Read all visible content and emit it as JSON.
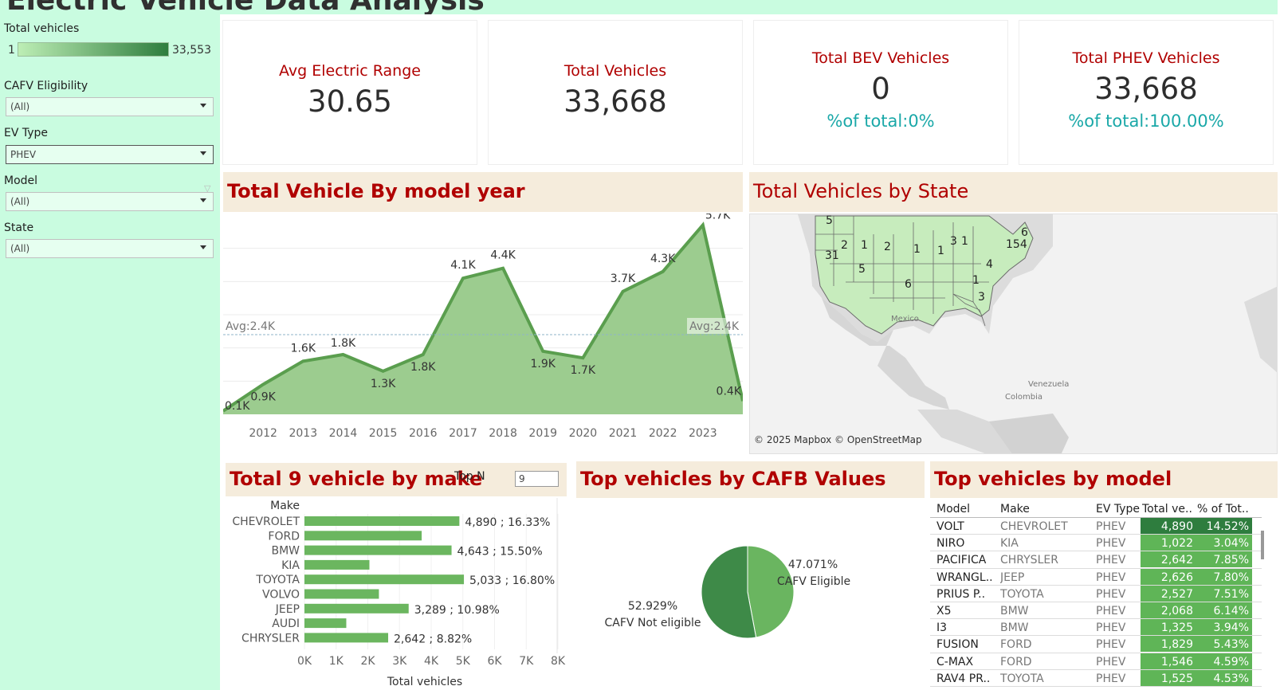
{
  "title": "Electric Vehicle Data Analysis",
  "sidebar": {
    "legend": {
      "label": "Total vehicles",
      "min": "1",
      "max": "33,553"
    },
    "filters": [
      {
        "label": "CAFV Eligibility",
        "value": "(All)"
      },
      {
        "label": "EV Type",
        "value": "PHEV"
      },
      {
        "label": "Model",
        "value": "(All)"
      },
      {
        "label": "State",
        "value": "(All)"
      }
    ]
  },
  "kpis": [
    {
      "title": "Avg Electric Range",
      "value": "30.65"
    },
    {
      "title": "Total Vehicles",
      "value": "33,668"
    },
    {
      "title": "Total BEV Vehicles",
      "value": "0",
      "pct": "%of total:0%"
    },
    {
      "title": "Total PHEV Vehicles",
      "value": "33,668",
      "pct": "%of total:100.00%"
    }
  ],
  "sections": {
    "model_year": "Total Vehicle By model year",
    "state": "Total Vehicles by State",
    "make": "Total 9 vehicle by make",
    "cafb": "Top vehicles by  CAFB Values",
    "model": "Top vehicles by model"
  },
  "topn": {
    "label": "Top N",
    "value": "9"
  },
  "chart_data": [
    {
      "type": "area",
      "title": "Total Vehicle By model year",
      "x_ticks": [
        "2012",
        "2013",
        "2014",
        "2015",
        "2016",
        "2017",
        "2018",
        "2019",
        "2020",
        "2021",
        "2022",
        "2023"
      ],
      "points": [
        {
          "x": 2011,
          "y": 0.1,
          "label": "0.1K"
        },
        {
          "x": 2012,
          "y": 0.9,
          "label": "0.9K"
        },
        {
          "x": 2013,
          "y": 1.6,
          "label": "1.6K"
        },
        {
          "x": 2014,
          "y": 1.8,
          "label": "1.8K"
        },
        {
          "x": 2015,
          "y": 1.3,
          "label": "1.3K"
        },
        {
          "x": 2016,
          "y": 1.8,
          "label": "1.8K"
        },
        {
          "x": 2017,
          "y": 4.1,
          "label": "4.1K"
        },
        {
          "x": 2018,
          "y": 4.4,
          "label": "4.4K"
        },
        {
          "x": 2019,
          "y": 1.9,
          "label": "1.9K"
        },
        {
          "x": 2020,
          "y": 1.7,
          "label": "1.7K"
        },
        {
          "x": 2021,
          "y": 3.7,
          "label": "3.7K"
        },
        {
          "x": 2022,
          "y": 4.3,
          "label": "4.3K"
        },
        {
          "x": 2023,
          "y": 5.7,
          "label": "5.7K"
        },
        {
          "x": 2024,
          "y": 0.4,
          "label": "0.4K"
        }
      ],
      "avg": {
        "value": 2.4,
        "label": "Avg:2.4K"
      },
      "ylim": [
        0,
        6
      ],
      "grid": true,
      "color": "#5a9e4e"
    },
    {
      "type": "bar",
      "title": "Total 9 vehicle by make",
      "orientation": "horizontal",
      "axis_header": "Make",
      "xlabel": "Total vehicles",
      "categories": [
        "CHEVROLET",
        "FORD",
        "BMW",
        "KIA",
        "TOYOTA",
        "VOLVO",
        "JEEP",
        "AUDI",
        "CHRYSLER"
      ],
      "values": [
        4890,
        3700,
        4643,
        2050,
        5033,
        2350,
        3289,
        1320,
        2642
      ],
      "labels": [
        "4,890 ; 16.33%",
        "",
        "4,643 ; 15.50%",
        "",
        "5,033 ; 16.80%",
        "",
        "3,289 ; 10.98%",
        "",
        "2,642 ; 8.82%"
      ],
      "x_ticks": [
        "0K",
        "1K",
        "2K",
        "3K",
        "4K",
        "5K",
        "6K",
        "7K",
        "8K"
      ],
      "xlim": [
        0,
        8000
      ],
      "color": "#6bb65f"
    },
    {
      "type": "pie",
      "title": "Top vehicles by  CAFB Values",
      "slices": [
        {
          "name": "CAFV Eligible",
          "value": 47.071,
          "label": "47.071%",
          "color": "#6ab560"
        },
        {
          "name": "CAFV Not eligible",
          "value": 52.929,
          "label": "52.929%",
          "color": "#3e8a48"
        }
      ]
    },
    {
      "type": "table",
      "title": "Top vehicles by model",
      "columns": [
        "Model",
        "Make",
        "EV Type",
        "Total ve..",
        "% of Tot.."
      ],
      "rows": [
        [
          "VOLT",
          "CHEVROLET",
          "PHEV",
          "4,890",
          "14.52%"
        ],
        [
          "NIRO",
          "KIA",
          "PHEV",
          "1,022",
          "3.04%"
        ],
        [
          "PACIFICA",
          "CHRYSLER",
          "PHEV",
          "2,642",
          "7.85%"
        ],
        [
          "WRANGL..",
          "JEEP",
          "PHEV",
          "2,626",
          "7.80%"
        ],
        [
          "PRIUS P..",
          "TOYOTA",
          "PHEV",
          "2,527",
          "7.51%"
        ],
        [
          "X5",
          "BMW",
          "PHEV",
          "2,068",
          "6.14%"
        ],
        [
          "I3",
          "BMW",
          "PHEV",
          "1,325",
          "3.94%"
        ],
        [
          "FUSION",
          "FORD",
          "PHEV",
          "1,829",
          "5.43%"
        ],
        [
          "C-MAX",
          "FORD",
          "PHEV",
          "1,546",
          "4.59%"
        ],
        [
          "RAV4 PR..",
          "TOYOTA",
          "PHEV",
          "1,525",
          "4.53%"
        ]
      ],
      "highlight_color": "#2e7d3e",
      "cell_color": "#5fb557"
    }
  ],
  "map": {
    "attribution": "© 2025 Mapbox © OpenStreetMap",
    "place_labels": [
      "Mexico",
      "Venezuela",
      "Colombia"
    ],
    "state_labels": [
      "5",
      "2",
      "1",
      "2",
      "1",
      "1",
      "3",
      "1",
      "154",
      "6",
      "31",
      "5",
      "6",
      "4",
      "1",
      "3"
    ]
  }
}
